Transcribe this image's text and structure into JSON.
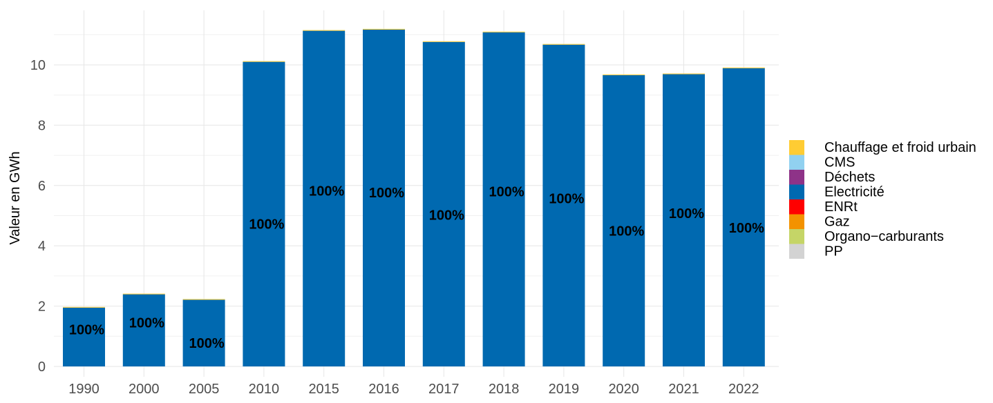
{
  "chart_data": {
    "type": "bar",
    "stacked": true,
    "title": "",
    "xlabel": "",
    "ylabel": "Valeur en GWh",
    "ylim": [
      0,
      11.5
    ],
    "yticks": [
      0,
      2,
      4,
      6,
      8,
      10
    ],
    "grid": true,
    "legend_position": "right",
    "categories": [
      "1990",
      "2000",
      "2005",
      "2010",
      "2015",
      "2016",
      "2017",
      "2018",
      "2019",
      "2020",
      "2021",
      "2022"
    ],
    "series": [
      {
        "name": "Chauffage et froid urbain",
        "color": "#FFCC33",
        "values": [
          0.02,
          0.02,
          0.02,
          0.02,
          0.02,
          0.02,
          0.02,
          0.02,
          0.02,
          0.02,
          0.02,
          0.02
        ]
      },
      {
        "name": "CMS",
        "color": "#91D1F0",
        "values": [
          0,
          0,
          0,
          0,
          0,
          0,
          0,
          0,
          0,
          0,
          0,
          0
        ]
      },
      {
        "name": "Déchets",
        "color": "#8E3388",
        "values": [
          0,
          0,
          0,
          0,
          0,
          0,
          0,
          0,
          0,
          0,
          0,
          0
        ]
      },
      {
        "name": "Electricité",
        "color": "#0069B0",
        "values": [
          1.95,
          2.39,
          2.21,
          10.1,
          11.13,
          11.17,
          10.76,
          11.08,
          10.67,
          9.66,
          9.69,
          9.89
        ]
      },
      {
        "name": "ENRt",
        "color": "#FF0000",
        "values": [
          0,
          0,
          0,
          0,
          0,
          0,
          0,
          0,
          0,
          0,
          0,
          0
        ]
      },
      {
        "name": "Gaz",
        "color": "#F39200",
        "values": [
          0,
          0,
          0,
          0,
          0,
          0,
          0,
          0,
          0,
          0,
          0,
          0
        ]
      },
      {
        "name": "Organo−carburants",
        "color": "#C5D567",
        "values": [
          0,
          0,
          0,
          0,
          0,
          0,
          0,
          0,
          0,
          0,
          0,
          0
        ]
      },
      {
        "name": "PP",
        "color": "#D3D3D3",
        "values": [
          0,
          0,
          0,
          0,
          0,
          0,
          0,
          0,
          0,
          0,
          0,
          0
        ]
      }
    ],
    "data_labels": [
      {
        "text": "100%",
        "y": 1.22
      },
      {
        "text": "100%",
        "y": 1.45
      },
      {
        "text": "100%",
        "y": 0.78
      },
      {
        "text": "100%",
        "y": 4.72
      },
      {
        "text": "100%",
        "y": 5.82
      },
      {
        "text": "100%",
        "y": 5.77
      },
      {
        "text": "100%",
        "y": 5.02
      },
      {
        "text": "100%",
        "y": 5.8
      },
      {
        "text": "100%",
        "y": 5.57
      },
      {
        "text": "100%",
        "y": 4.5
      },
      {
        "text": "100%",
        "y": 5.08
      },
      {
        "text": "100%",
        "y": 4.6
      }
    ]
  }
}
